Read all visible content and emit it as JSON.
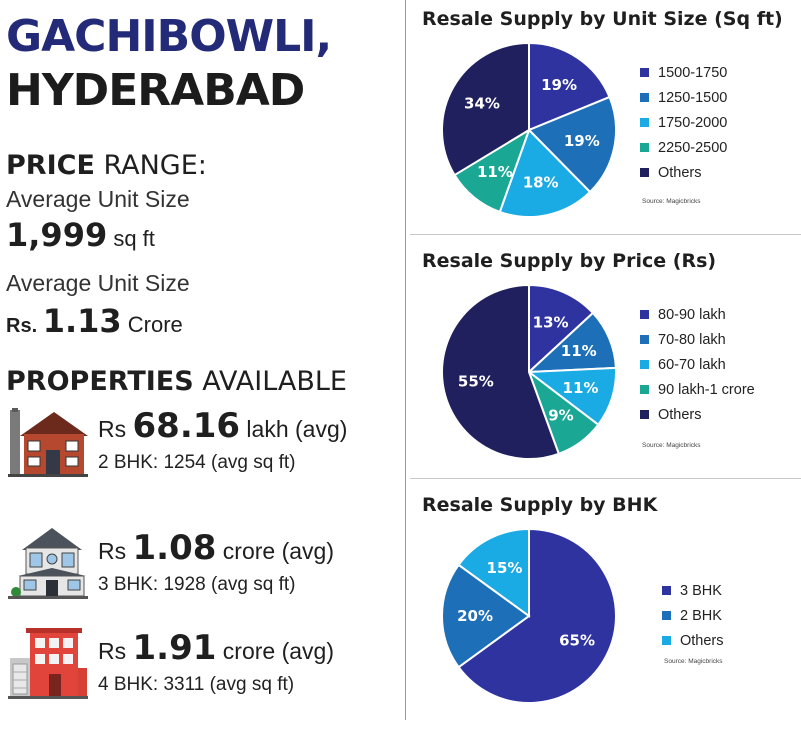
{
  "location": {
    "line1": "GACHIBOWLI,",
    "line2": "HYDERABAD"
  },
  "price_range": {
    "heading_bold": "PRICE",
    "heading_rest": " RANGE:",
    "size_label": "Average Unit Size",
    "size_value": "1,999",
    "size_unit": " sq ft",
    "price_label": "Average Unit Size",
    "price_prefix": "Rs. ",
    "price_value": "1.13",
    "price_unit": " Crore"
  },
  "properties": {
    "heading_bold": "PROPERTIES",
    "heading_rest": " AVAILABLE",
    "items": [
      {
        "prefix": "Rs ",
        "amount": "68.16",
        "suffix": " lakh (avg)",
        "detail": "2 BHK: 1254 (avg sq ft)",
        "icon": "house-icon"
      },
      {
        "prefix": "Rs ",
        "amount": "1.08",
        "suffix": " crore (avg)",
        "detail": "3 BHK: 1928 (avg sq ft)",
        "icon": "villa-icon"
      },
      {
        "prefix": "Rs ",
        "amount": "1.91",
        "suffix": " crore (avg)",
        "detail": "4 BHK: 3311 (avg sq ft)",
        "icon": "building-icon"
      }
    ]
  },
  "colors": {
    "navy": "#232a78",
    "royal": "#2f33a0",
    "blue": "#1d6fb8",
    "sky": "#1aaae4",
    "teal": "#1aa894",
    "dark": "#21205e"
  },
  "chart_data": [
    {
      "type": "pie",
      "title": "Resale Supply by Unit Size (Sq ft)",
      "source": "Source: Magicbricks",
      "slices": [
        {
          "label": "1500-1750",
          "value": 19,
          "text": "19%",
          "color": "#2f33a0"
        },
        {
          "label": "1250-1500",
          "value": 19,
          "text": "19%",
          "color": "#1d6fb8"
        },
        {
          "label": "1750-2000",
          "value": 18,
          "text": "18%",
          "color": "#1aaae4"
        },
        {
          "label": "2250-2500",
          "value": 11,
          "text": "11%",
          "color": "#1aa894"
        },
        {
          "label": "Others",
          "value": 34,
          "text": "34%",
          "color": "#21205e"
        }
      ],
      "legend_position": "right"
    },
    {
      "type": "pie",
      "title": "Resale Supply by Price (Rs)",
      "source": "Source: Magicbricks",
      "slices": [
        {
          "label": "80-90 lakh",
          "value": 13,
          "text": "13%",
          "color": "#2f33a0"
        },
        {
          "label": "70-80 lakh",
          "value": 11,
          "text": "11%",
          "color": "#1d6fb8"
        },
        {
          "label": "60-70 lakh",
          "value": 11,
          "text": "11%",
          "color": "#1aaae4"
        },
        {
          "label": "90 lakh-1 crore",
          "value": 9,
          "text": "9%",
          "color": "#1aa894"
        },
        {
          "label": "Others",
          "value": 55,
          "text": "55%",
          "color": "#21205e"
        }
      ],
      "legend_position": "right"
    },
    {
      "type": "pie",
      "title": "Resale Supply by BHK",
      "source": "Source: Magicbricks",
      "slices": [
        {
          "label": "3 BHK",
          "value": 65,
          "text": "65%",
          "color": "#2f33a0"
        },
        {
          "label": "2 BHK",
          "value": 20,
          "text": "20%",
          "color": "#1d6fb8"
        },
        {
          "label": "Others",
          "value": 15,
          "text": "15%",
          "color": "#1aaae4"
        }
      ],
      "legend_position": "right"
    }
  ]
}
